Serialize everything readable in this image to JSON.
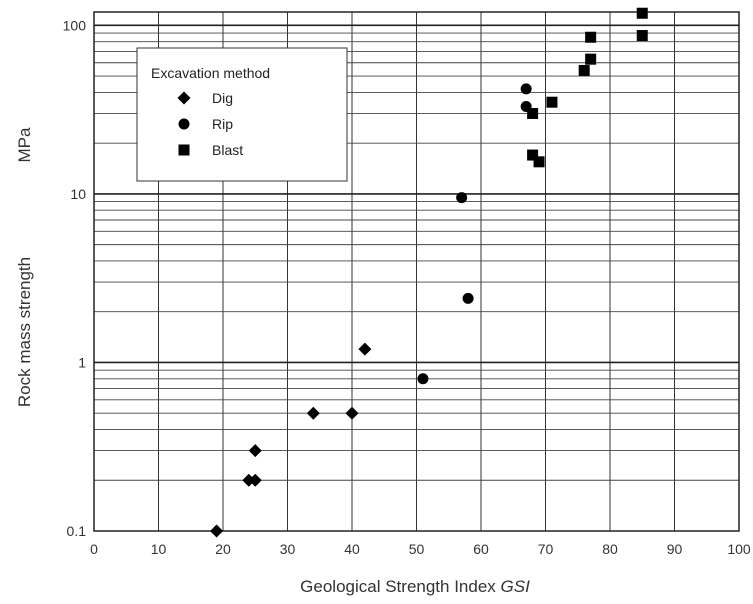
{
  "chart_data": {
    "type": "scatter",
    "xlabel": "Geological Strength Index",
    "xlabel_italic": "GSI",
    "ylabel_parts": [
      "Rock mass strength",
      "MPa"
    ],
    "xlim": [
      0,
      100
    ],
    "ylim": [
      0.1,
      120
    ],
    "y_scale": "log",
    "grid": true,
    "x_ticks": [
      "0",
      "10",
      "20",
      "30",
      "40",
      "50",
      "60",
      "70",
      "80",
      "90",
      "100"
    ],
    "y_ticks": [
      "0.1",
      "1",
      "10",
      "100"
    ],
    "legend": {
      "title": "Excavation method",
      "placement": "top-left"
    },
    "series": [
      {
        "name": "Dig",
        "marker": "diamond",
        "points": [
          {
            "x": 19,
            "y": 0.1
          },
          {
            "x": 24,
            "y": 0.2
          },
          {
            "x": 25,
            "y": 0.2
          },
          {
            "x": 25,
            "y": 0.3
          },
          {
            "x": 34,
            "y": 0.5
          },
          {
            "x": 40,
            "y": 0.5
          },
          {
            "x": 42,
            "y": 1.2
          }
        ]
      },
      {
        "name": "Rip",
        "marker": "circle",
        "points": [
          {
            "x": 51,
            "y": 0.8
          },
          {
            "x": 57,
            "y": 9.5
          },
          {
            "x": 58,
            "y": 2.4
          },
          {
            "x": 67,
            "y": 42
          },
          {
            "x": 67,
            "y": 33
          }
        ]
      },
      {
        "name": "Blast",
        "marker": "square",
        "points": [
          {
            "x": 68,
            "y": 30
          },
          {
            "x": 68,
            "y": 17
          },
          {
            "x": 69,
            "y": 15.5
          },
          {
            "x": 71,
            "y": 35
          },
          {
            "x": 76,
            "y": 54
          },
          {
            "x": 77,
            "y": 63
          },
          {
            "x": 77,
            "y": 85
          },
          {
            "x": 85,
            "y": 118
          },
          {
            "x": 85,
            "y": 87
          }
        ]
      }
    ]
  }
}
